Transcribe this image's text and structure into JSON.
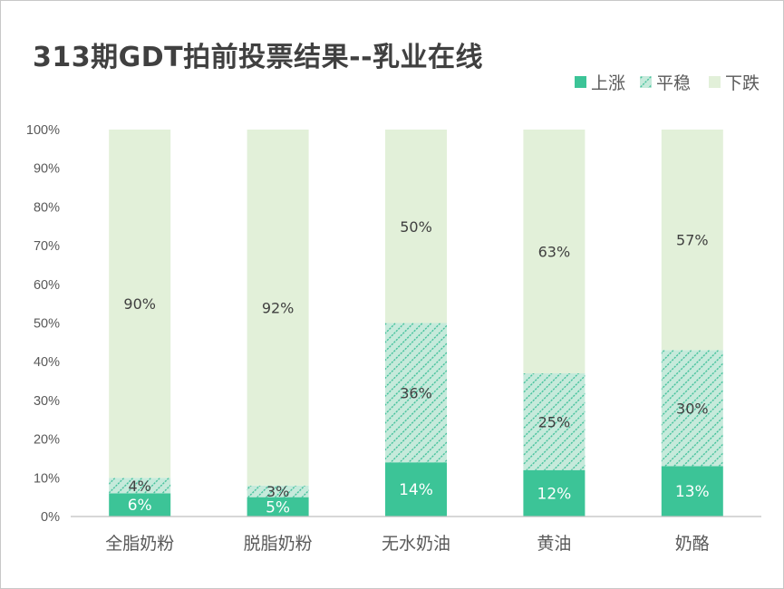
{
  "title": "313期GDT拍前投票结果--乳业在线",
  "colors": {
    "up": "#3cc497",
    "flat_bg": "#c6eadb",
    "flat_stripe": "#3cbf98",
    "down": "#e2f0d9",
    "axis": "#bfbfbf",
    "text": "#595959"
  },
  "chart_data": {
    "type": "bar",
    "stacked": true,
    "title": "313期GDT拍前投票结果--乳业在线",
    "categories": [
      "全脂奶粉",
      "脱脂奶粉",
      "无水奶油",
      "黄油",
      "奶酪"
    ],
    "series": [
      {
        "name": "上涨",
        "values": [
          6,
          5,
          14,
          12,
          13
        ],
        "labels": [
          "6%",
          "5%",
          "14%",
          "12%",
          "13%"
        ]
      },
      {
        "name": "平稳",
        "values": [
          4,
          3,
          36,
          25,
          30
        ],
        "labels": [
          "4%",
          "3%",
          "36%",
          "25%",
          "30%"
        ]
      },
      {
        "name": "下跌",
        "values": [
          90,
          92,
          50,
          63,
          57
        ],
        "labels": [
          "90%",
          "92%",
          "50%",
          "63%",
          "57%"
        ]
      }
    ],
    "yticks": [
      "0%",
      "10%",
      "20%",
      "30%",
      "40%",
      "50%",
      "60%",
      "70%",
      "80%",
      "90%",
      "100%"
    ],
    "ylim": [
      0,
      100
    ],
    "grid": false,
    "legend": "top-right"
  }
}
